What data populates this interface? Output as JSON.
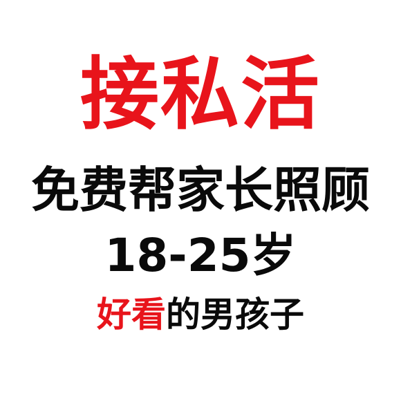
{
  "colors": {
    "background": "#ffffff",
    "red": "#e8141b",
    "black": "#0a0a0a"
  },
  "headline": "接私活",
  "line2": "免费帮家长照顾",
  "line3": "18-25岁",
  "line4": {
    "highlight": "好看",
    "rest": "的男孩子"
  }
}
